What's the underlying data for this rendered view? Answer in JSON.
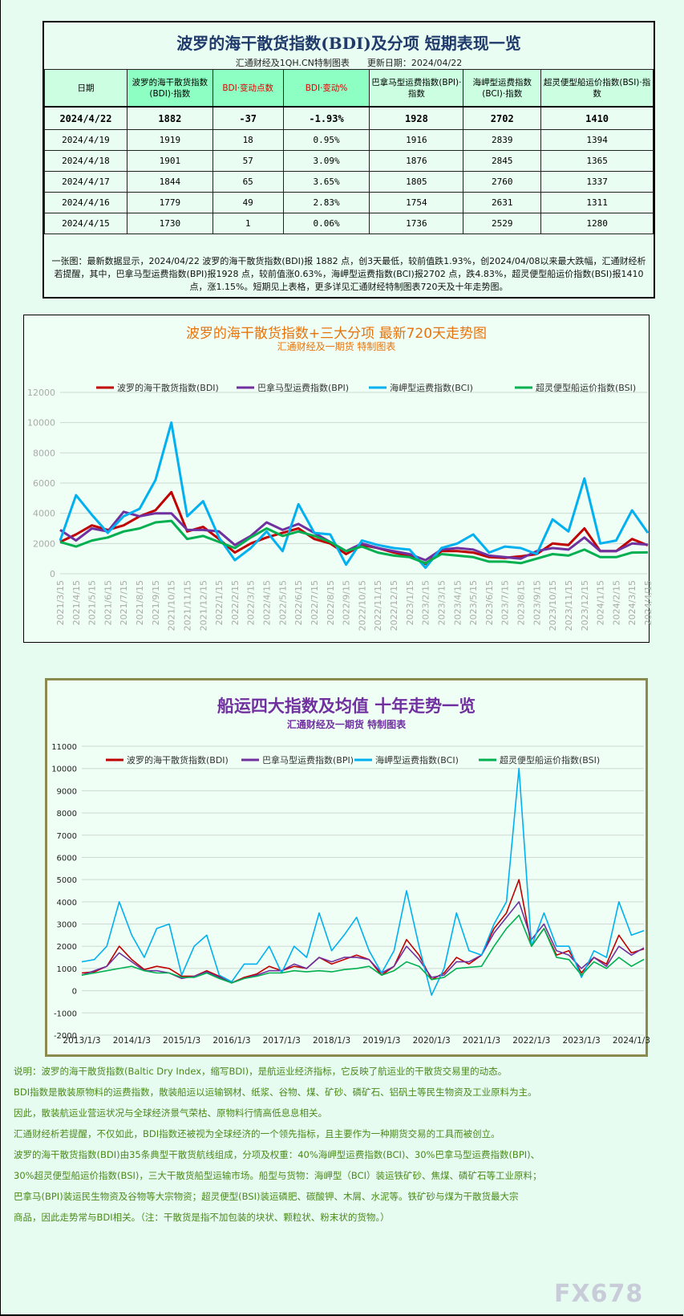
{
  "table": {
    "title": "波罗的海干散货指数(BDI)及分项 短期表现一览",
    "subtitle": "汇通财经及1QH.CN特制图表　　更新日期：2024/04/22",
    "headers": [
      "日期",
      "波罗的海干散货指数(BDI)·指数",
      "BDI·变动点数",
      "BDI·变动%",
      "巴拿马型运费指数(BPI)·指数",
      "海岬型运费指数(BCI)·指数",
      "超灵便型船运价指数(BSI)·指数"
    ],
    "rows": [
      [
        "2024/4/22",
        "1882",
        "-37",
        "-1.93%",
        "1928",
        "2702",
        "1410"
      ],
      [
        "2024/4/19",
        "1919",
        "18",
        "0.95%",
        "1916",
        "2839",
        "1394"
      ],
      [
        "2024/4/18",
        "1901",
        "57",
        "3.09%",
        "1876",
        "2845",
        "1365"
      ],
      [
        "2024/4/17",
        "1844",
        "65",
        "3.65%",
        "1805",
        "2760",
        "1337"
      ],
      [
        "2024/4/16",
        "1779",
        "49",
        "2.83%",
        "1754",
        "2631",
        "1311"
      ],
      [
        "2024/4/15",
        "1730",
        "1",
        "0.06%",
        "1736",
        "2529",
        "1280"
      ]
    ],
    "summary": "一张图：最新数据显示，2024/04/22 波罗的海干散货指数(BDI)报 1882 点，创3天最低，较前值跌1.93%，创2024/04/08以来最大跌幅，汇通财经析若提醒，其中，巴拿马型运费指数(BPI)报1928 点，较前值涨0.63%，海岬型运费指数(BCI)报2702 点，跌4.83%，超灵便型船运价指数(BSI)报1410 点，涨1.15%。短期见上表格，更多详见汇通财经特制图表720天及十年走势图。"
  },
  "chart_data": [
    {
      "type": "line",
      "title": "波罗的海干散货指数+三大分项  最新720天走势图",
      "subtitle": "汇通财经及一期货  特制图表",
      "title_color": "#e8730c",
      "legend_position": "top",
      "grid": true,
      "ylim": [
        0,
        12000
      ],
      "yticks": [
        "0",
        "2000",
        "4000",
        "6000",
        "8000",
        "10000",
        "12000"
      ],
      "x": [
        "2021/3/15",
        "2021/4/15",
        "2021/5/15",
        "2021/6/15",
        "2021/7/15",
        "2021/8/15",
        "2021/9/15",
        "2021/10/15",
        "2021/11/15",
        "2021/12/15",
        "2022/1/15",
        "2022/2/15",
        "2022/3/15",
        "2022/4/15",
        "2022/5/15",
        "2022/6/15",
        "2022/7/15",
        "2022/8/15",
        "2022/9/15",
        "2022/10/15",
        "2022/11/15",
        "2022/12/15",
        "2023/1/15",
        "2023/2/15",
        "2023/3/15",
        "2023/4/15",
        "2023/5/15",
        "2023/6/15",
        "2023/7/15",
        "2023/8/15",
        "2023/9/15",
        "2023/10/15",
        "2023/11/15",
        "2023/12/15",
        "2024/1/15",
        "2024/2/15",
        "2024/3/15",
        "2024/4/15"
      ],
      "series": [
        {
          "name": "波罗的海干散货指数(BDI)",
          "color": "#c00000",
          "values": [
            2100,
            2600,
            3200,
            2900,
            3200,
            3800,
            4200,
            5400,
            2800,
            3100,
            2300,
            1400,
            2000,
            2400,
            2700,
            3000,
            2300,
            2000,
            1300,
            1900,
            1700,
            1400,
            1200,
            650,
            1500,
            1500,
            1400,
            1100,
            1050,
            1150,
            1300,
            2000,
            1900,
            3000,
            1500,
            1500,
            2300,
            1880
          ]
        },
        {
          "name": "巴拿马型运费指数(BPI)",
          "color": "#7030a0",
          "values": [
            2900,
            2200,
            3000,
            2800,
            4100,
            3800,
            4000,
            4000,
            2900,
            2900,
            2800,
            1900,
            2500,
            3400,
            2900,
            3300,
            2700,
            2100,
            1500,
            2000,
            1700,
            1500,
            1300,
            900,
            1600,
            1700,
            1600,
            1200,
            1100,
            1000,
            1500,
            1700,
            1600,
            2400,
            1500,
            1500,
            2000,
            1930
          ]
        },
        {
          "name": "海岬型运费指数(BCI)",
          "color": "#00b0f0",
          "values": [
            2200,
            5200,
            3900,
            2700,
            3800,
            4300,
            6200,
            10000,
            3800,
            4800,
            2400,
            900,
            1700,
            2800,
            1500,
            4600,
            2700,
            2600,
            600,
            2200,
            1900,
            1700,
            1600,
            400,
            1700,
            2000,
            2600,
            1400,
            1800,
            1700,
            1300,
            3600,
            2800,
            6300,
            2000,
            2200,
            4200,
            2700
          ]
        },
        {
          "name": "超灵便型船运价指数(BSI)",
          "color": "#00b050",
          "values": [
            2100,
            1800,
            2200,
            2400,
            2800,
            3000,
            3400,
            3500,
            2300,
            2500,
            2100,
            1700,
            2400,
            3000,
            2500,
            2800,
            2500,
            2100,
            1500,
            1800,
            1400,
            1200,
            1100,
            700,
            1300,
            1200,
            1100,
            800,
            800,
            700,
            1000,
            1300,
            1200,
            1600,
            1100,
            1100,
            1400,
            1410
          ]
        }
      ]
    },
    {
      "type": "line",
      "title": "船运四大指数及均值 十年走势一览",
      "subtitle": "汇通财经及一期货 特制图表",
      "title_color": "#7030a0",
      "legend_position": "top",
      "grid": true,
      "ylim": [
        -2000,
        11000
      ],
      "yticks": [
        "-2000",
        "-1000",
        "0",
        "1000",
        "2000",
        "3000",
        "4000",
        "5000",
        "6000",
        "7000",
        "8000",
        "9000",
        "10000",
        "11000"
      ],
      "xticks": [
        "2013/1/3",
        "2014/1/3",
        "2015/1/3",
        "2016/1/3",
        "2017/1/3",
        "2018/1/3",
        "2019/1/3",
        "2020/1/3",
        "2021/1/3",
        "2022/1/3",
        "2023/1/3",
        "2024/1/3"
      ],
      "x": [
        "2013/1",
        "2013/4",
        "2013/7",
        "2013/10",
        "2014/1",
        "2014/4",
        "2014/7",
        "2014/10",
        "2015/1",
        "2015/4",
        "2015/7",
        "2015/10",
        "2016/1",
        "2016/4",
        "2016/7",
        "2016/10",
        "2017/1",
        "2017/4",
        "2017/7",
        "2017/10",
        "2018/1",
        "2018/4",
        "2018/7",
        "2018/10",
        "2019/1",
        "2019/4",
        "2019/7",
        "2019/10",
        "2020/1",
        "2020/4",
        "2020/7",
        "2020/10",
        "2021/1",
        "2021/4",
        "2021/7",
        "2021/10",
        "2022/1",
        "2022/4",
        "2022/7",
        "2022/10",
        "2023/1",
        "2023/4",
        "2023/7",
        "2023/10",
        "2024/1",
        "2024/4"
      ],
      "series": [
        {
          "name": "波罗的海干散货指数(BDI)",
          "color": "#c00000",
          "values": [
            800,
            850,
            1100,
            2000,
            1400,
            950,
            1100,
            1000,
            650,
            650,
            900,
            650,
            350,
            600,
            750,
            1100,
            900,
            1100,
            1000,
            1500,
            1200,
            1400,
            1600,
            1400,
            700,
            1100,
            2300,
            1600,
            500,
            800,
            1500,
            1200,
            1600,
            2800,
            3500,
            5000,
            2000,
            2800,
            1600,
            1800,
            800,
            1500,
            1200,
            2500,
            1700,
            1880
          ]
        },
        {
          "name": "巴拿马型运费指数(BPI)",
          "color": "#7030a0",
          "values": [
            700,
            900,
            1100,
            1700,
            1300,
            900,
            900,
            800,
            550,
            650,
            850,
            600,
            350,
            550,
            700,
            900,
            900,
            1200,
            1000,
            1500,
            1300,
            1500,
            1500,
            1400,
            800,
            1100,
            2000,
            1400,
            600,
            700,
            1300,
            1300,
            1600,
            2600,
            3300,
            4000,
            2300,
            3000,
            1800,
            1600,
            1000,
            1500,
            1100,
            2000,
            1600,
            1930
          ]
        },
        {
          "name": "海岬型运费指数(BCI)",
          "color": "#00b0f0",
          "values": [
            1300,
            1400,
            2000,
            4000,
            2500,
            1500,
            2800,
            3000,
            700,
            2000,
            2500,
            700,
            400,
            1200,
            1200,
            2000,
            800,
            2000,
            1500,
            3500,
            1800,
            2500,
            3300,
            1800,
            800,
            1800,
            4500,
            2000,
            -200,
            1000,
            3500,
            1800,
            1600,
            3000,
            4000,
            10000,
            2000,
            3500,
            2000,
            2000,
            600,
            1800,
            1500,
            4000,
            2500,
            2700
          ]
        },
        {
          "name": "超灵便型船运价指数(BSI)",
          "color": "#00b050",
          "values": [
            700,
            800,
            900,
            1000,
            1100,
            900,
            800,
            800,
            600,
            600,
            800,
            550,
            350,
            550,
            650,
            800,
            800,
            900,
            850,
            900,
            850,
            950,
            1000,
            1100,
            700,
            900,
            1300,
            1100,
            500,
            600,
            1000,
            1050,
            1100,
            2000,
            2800,
            3400,
            2000,
            2800,
            1500,
            1400,
            700,
            1300,
            1000,
            1500,
            1100,
            1410
          ]
        }
      ]
    }
  ],
  "notes": [
    "说明：波罗的海干散货指数(Baltic Dry Index，缩写BDI)，是航运业经济指标，它反映了航运业的干散货交易里的动态。",
    "BDI指数是散装原物料的运费指数，散装船运以运输钢材、纸浆、谷物、煤、矿砂、磷矿石、铝矾土等民生物资及工业原料为主。",
    "因此，散装航运业营运状况与全球经济景气荣枯、原物料行情高低息息相关。",
    "汇通财经析若提醒，不仅如此，BDI指数还被视为全球经济的一个领先指标，且主要作为一种期货交易的工具而被创立。",
    "波罗的海干散货指数(BDI)由35条典型干散货航线组成，分项及权重：40%海岬型运费指数(BCI)、30%巴拿马型运费指数(BPI)、",
    "30%超灵便型船运价指数(BSI)，三大干散货船型运输市场。船型与货物：海岬型（BCI）装运铁矿砂、焦煤、磷矿石等工业原料；",
    "巴拿马(BPI)装运民生物资及谷物等大宗物资；超灵便型(BSI)装运磷肥、碳酸钾、木屑、水泥等。铁矿砂与煤为干散货最大宗",
    "商品，因此走势常与BDI相关。（注：干散货是指不加包装的块状、颗粒状、粉末状的货物。）"
  ],
  "watermark": "FX678"
}
